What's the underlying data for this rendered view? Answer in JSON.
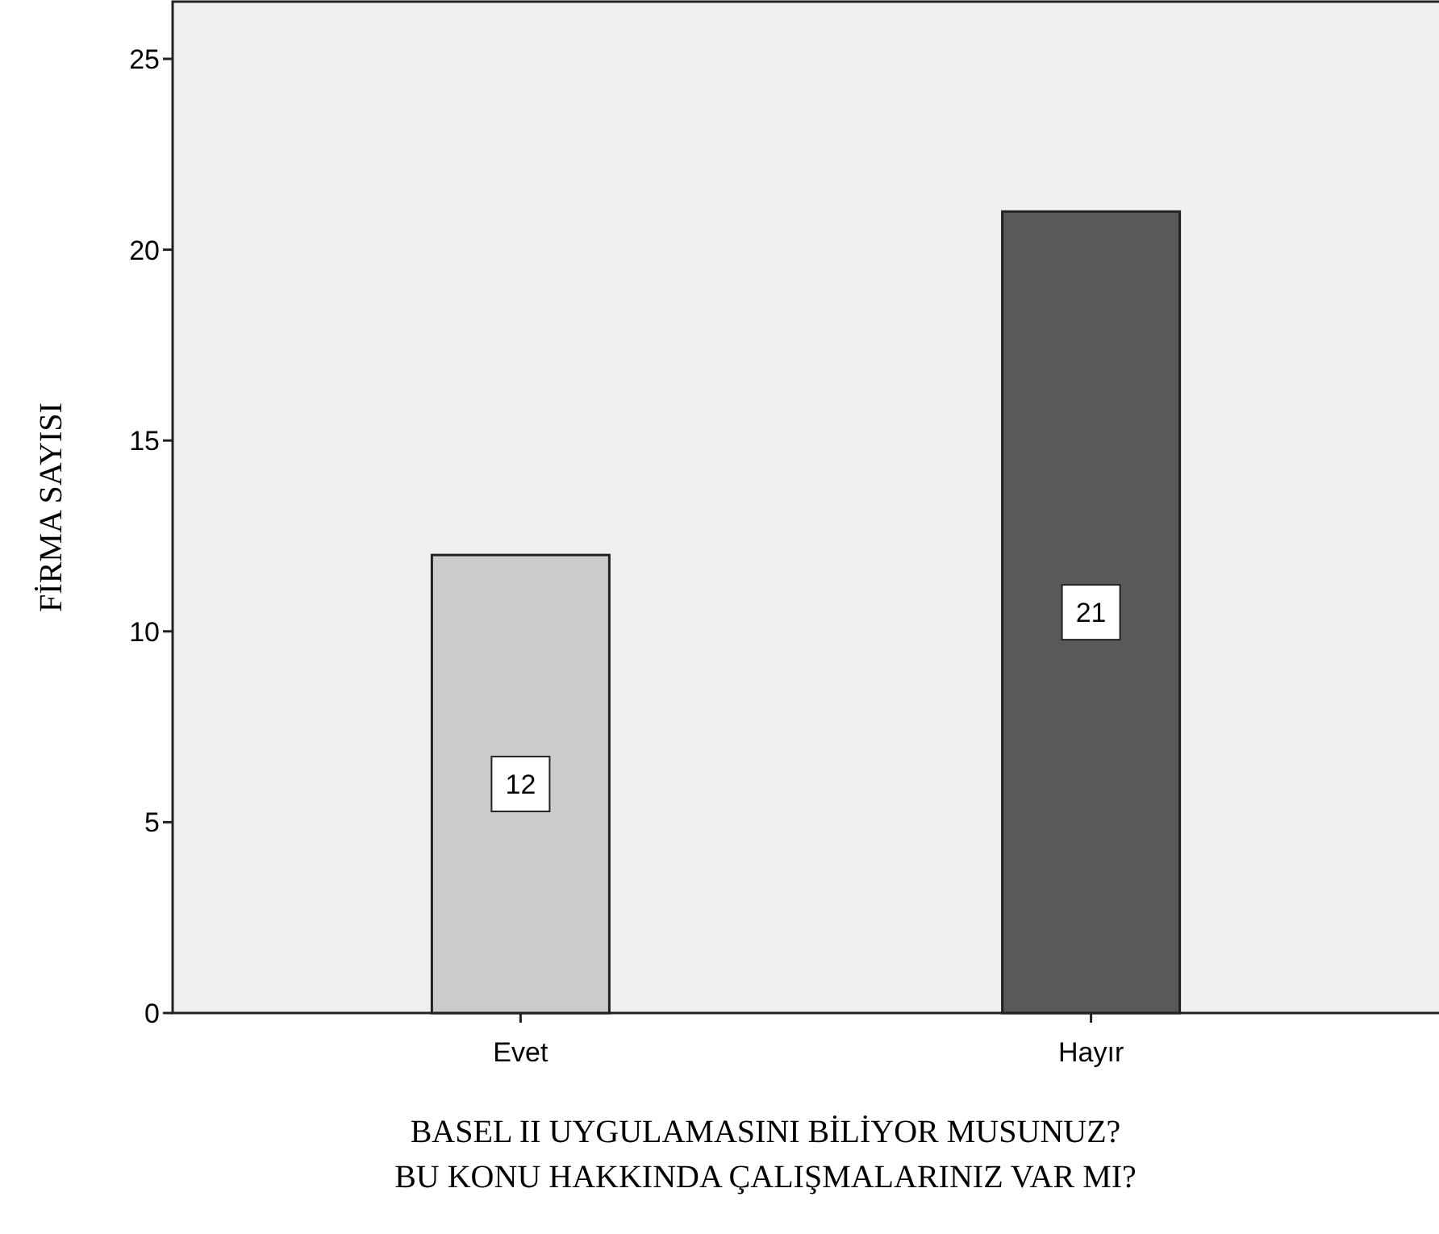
{
  "chart_data": {
    "type": "bar",
    "xlabel": "BASEL II UYGULAMASINI BİLİYOR MUSUNUZ?\nBU KONU HAKKINDA ÇALIŞMALARINIZ VAR MI?",
    "ylabel": "FİRMA SAYISI",
    "categories": [
      "Evet",
      "Hayır"
    ],
    "values": [
      12,
      21
    ],
    "colors": [
      "#cccccc",
      "#595959"
    ],
    "ylim": [
      0,
      26.5
    ],
    "yticks": [
      0,
      5,
      10,
      15,
      20,
      25
    ],
    "grid": false,
    "data_labels": true
  }
}
